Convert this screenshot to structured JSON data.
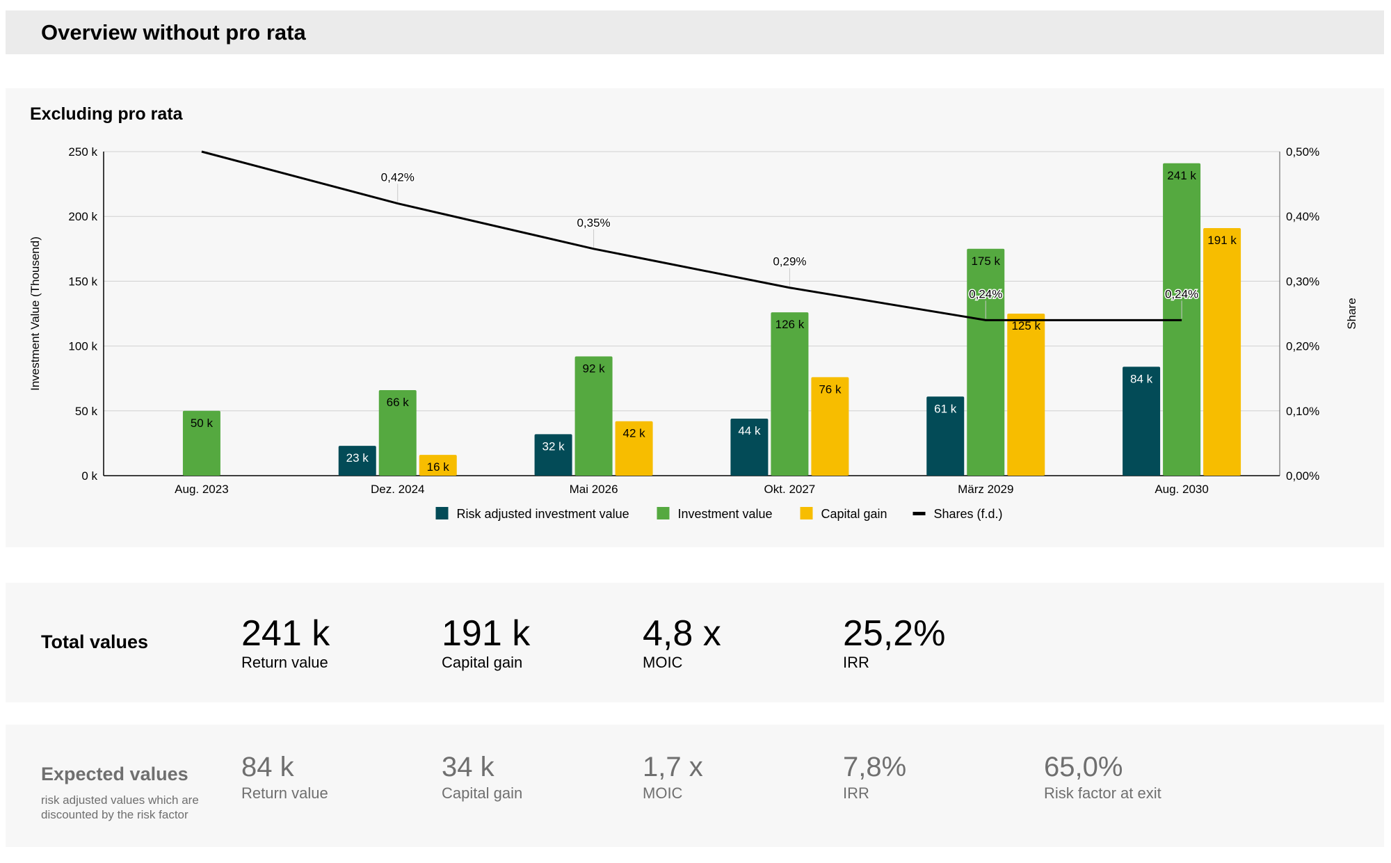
{
  "header": {
    "title": "Overview without pro rata"
  },
  "colors": {
    "risk_adjusted": "#034b57",
    "investment": "#55a940",
    "capital_gain": "#f7bd00",
    "shares_line": "#000000",
    "grid": "#d0d0d0",
    "card_bg": "#f7f7f7",
    "header_bg": "#ebebeb",
    "muted_text": "#6f6f6f"
  },
  "chart_data": {
    "type": "bar",
    "title": "Excluding pro rata",
    "categories": [
      "Aug. 2023",
      "Dez. 2024",
      "Mai 2026",
      "Okt. 2027",
      "März 2029",
      "Aug. 2030"
    ],
    "series": [
      {
        "name": "Risk adjusted investment value",
        "kind": "bar",
        "color": "#034b57",
        "values": [
          null,
          23,
          32,
          44,
          61,
          84
        ],
        "labels": [
          "",
          "23 k",
          "32 k",
          "44 k",
          "61 k",
          "84 k"
        ]
      },
      {
        "name": "Investment value",
        "kind": "bar",
        "color": "#55a940",
        "values": [
          50,
          66,
          92,
          126,
          175,
          241
        ],
        "labels": [
          "50 k",
          "66 k",
          "92 k",
          "126 k",
          "175 k",
          "241 k"
        ]
      },
      {
        "name": "Capital gain",
        "kind": "bar",
        "color": "#f7bd00",
        "values": [
          null,
          16,
          42,
          76,
          125,
          191
        ],
        "labels": [
          "",
          "16 k",
          "42 k",
          "76 k",
          "125 k",
          "191 k"
        ]
      },
      {
        "name": "Shares (f.d.)",
        "kind": "line",
        "axis": "right",
        "color": "#000000",
        "values": [
          0.5,
          0.42,
          0.35,
          0.29,
          0.24,
          0.24
        ],
        "labels": [
          "",
          "0,42%",
          "0,35%",
          "0,29%",
          "0,24%",
          "0,24%"
        ]
      }
    ],
    "ylabel": "Investment Value (Thousend)",
    "ylim": [
      0,
      250
    ],
    "yticks": [
      0,
      50,
      100,
      150,
      200,
      250
    ],
    "ytick_labels": [
      "0 k",
      "50 k",
      "100 k",
      "150 k",
      "200 k",
      "250 k"
    ],
    "y2label": "Share",
    "y2lim": [
      0,
      0.5
    ],
    "y2ticks": [
      0,
      0.1,
      0.2,
      0.3,
      0.4,
      0.5
    ],
    "y2tick_labels": [
      "0,00%",
      "0,10%",
      "0,20%",
      "0,30%",
      "0,40%",
      "0,50%"
    ],
    "grid": true,
    "legend": "bottom-center"
  },
  "totals": {
    "label": "Total values",
    "metrics": [
      {
        "value": "241 k",
        "label": "Return value"
      },
      {
        "value": "191 k",
        "label": "Capital gain"
      },
      {
        "value": "4,8 x",
        "label": "MOIC"
      },
      {
        "value": "25,2%",
        "label": "IRR"
      }
    ]
  },
  "expected": {
    "label": "Expected values",
    "subtitle": "risk adjusted values which are discounted by the risk factor",
    "metrics": [
      {
        "value": "84 k",
        "label": "Return value"
      },
      {
        "value": "34 k",
        "label": "Capital gain"
      },
      {
        "value": "1,7 x",
        "label": "MOIC"
      },
      {
        "value": "7,8%",
        "label": "IRR"
      },
      {
        "value": "65,0%",
        "label": "Risk factor at exit"
      }
    ]
  }
}
